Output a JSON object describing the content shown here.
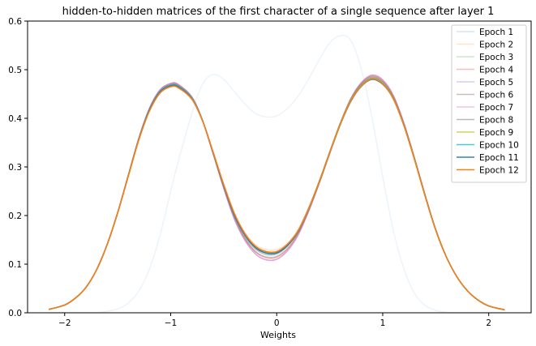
{
  "chart_data": {
    "type": "line",
    "title": "hidden-to-hidden matrices of the first character of a single sequence after layer 1",
    "xlabel": "Weights",
    "ylabel": "",
    "xlim": [
      -2.35,
      2.4
    ],
    "ylim": [
      0,
      0.6
    ],
    "xticks": [
      -2,
      -1,
      0,
      1,
      2
    ],
    "xtick_labels": [
      "−2",
      "−1",
      "0",
      "1",
      "2"
    ],
    "yticks": [
      0.0,
      0.1,
      0.2,
      0.3,
      0.4,
      0.5,
      0.6
    ],
    "ytick_labels": [
      "0.0",
      "0.1",
      "0.2",
      "0.3",
      "0.4",
      "0.5",
      "0.6"
    ],
    "grid": false,
    "legend_position": "top-right",
    "x": [
      -2.15,
      -2.0,
      -1.9,
      -1.8,
      -1.7,
      -1.6,
      -1.5,
      -1.4,
      -1.3,
      -1.2,
      -1.1,
      -1.0,
      -0.93,
      -0.8,
      -0.7,
      -0.6,
      -0.5,
      -0.4,
      -0.3,
      -0.2,
      -0.1,
      0.0,
      0.1,
      0.2,
      0.3,
      0.4,
      0.5,
      0.6,
      0.7,
      0.8,
      0.9,
      1.0,
      1.1,
      1.2,
      1.3,
      1.4,
      1.5,
      1.6,
      1.7,
      1.8,
      1.9,
      2.0,
      2.15
    ],
    "series": [
      {
        "name": "Epoch 1",
        "color": "#1f77b4",
        "opacity": 0.08,
        "values": [
          0.0,
          0.0,
          0.0,
          0.0,
          0.0,
          0.003,
          0.008,
          0.02,
          0.045,
          0.09,
          0.16,
          0.25,
          0.31,
          0.41,
          0.47,
          0.49,
          0.48,
          0.455,
          0.43,
          0.41,
          0.403,
          0.405,
          0.42,
          0.445,
          0.48,
          0.52,
          0.555,
          0.57,
          0.56,
          0.5,
          0.4,
          0.28,
          0.17,
          0.09,
          0.04,
          0.015,
          0.005,
          0.001,
          0.0,
          0.0,
          0.0,
          0.0,
          0.0
        ]
      },
      {
        "name": "Epoch 2",
        "color": "#ff7f0e",
        "opacity": 0.22,
        "values": [
          0.007,
          0.016,
          0.03,
          0.052,
          0.088,
          0.14,
          0.205,
          0.28,
          0.355,
          0.415,
          0.452,
          0.466,
          0.463,
          0.44,
          0.395,
          0.33,
          0.265,
          0.205,
          0.165,
          0.14,
          0.13,
          0.13,
          0.143,
          0.17,
          0.215,
          0.27,
          0.33,
          0.39,
          0.438,
          0.468,
          0.48,
          0.47,
          0.44,
          0.385,
          0.315,
          0.24,
          0.17,
          0.115,
          0.074,
          0.045,
          0.026,
          0.014,
          0.006
        ]
      },
      {
        "name": "Epoch 3",
        "color": "#2ca02c",
        "opacity": 0.25,
        "values": [
          0.007,
          0.016,
          0.03,
          0.052,
          0.088,
          0.14,
          0.205,
          0.28,
          0.355,
          0.415,
          0.452,
          0.466,
          0.463,
          0.44,
          0.394,
          0.329,
          0.263,
          0.203,
          0.162,
          0.137,
          0.126,
          0.126,
          0.14,
          0.167,
          0.212,
          0.267,
          0.328,
          0.388,
          0.437,
          0.468,
          0.481,
          0.472,
          0.442,
          0.386,
          0.316,
          0.241,
          0.171,
          0.115,
          0.074,
          0.045,
          0.026,
          0.014,
          0.006
        ]
      },
      {
        "name": "Epoch 4",
        "color": "#d62728",
        "opacity": 0.3,
        "values": [
          0.007,
          0.016,
          0.03,
          0.052,
          0.088,
          0.14,
          0.206,
          0.282,
          0.358,
          0.419,
          0.457,
          0.47,
          0.468,
          0.443,
          0.396,
          0.328,
          0.258,
          0.196,
          0.152,
          0.125,
          0.113,
          0.114,
          0.13,
          0.161,
          0.209,
          0.266,
          0.328,
          0.389,
          0.44,
          0.472,
          0.487,
          0.477,
          0.446,
          0.389,
          0.318,
          0.242,
          0.171,
          0.115,
          0.074,
          0.045,
          0.026,
          0.014,
          0.006
        ]
      },
      {
        "name": "Epoch 5",
        "color": "#9467bd",
        "opacity": 0.35,
        "values": [
          0.007,
          0.016,
          0.03,
          0.052,
          0.088,
          0.14,
          0.206,
          0.283,
          0.36,
          0.421,
          0.459,
          0.472,
          0.47,
          0.444,
          0.396,
          0.327,
          0.256,
          0.193,
          0.149,
          0.121,
          0.109,
          0.11,
          0.127,
          0.159,
          0.208,
          0.266,
          0.329,
          0.39,
          0.441,
          0.474,
          0.489,
          0.479,
          0.447,
          0.39,
          0.318,
          0.242,
          0.171,
          0.115,
          0.074,
          0.045,
          0.026,
          0.014,
          0.006
        ]
      },
      {
        "name": "Epoch 6",
        "color": "#8c564b",
        "opacity": 0.4,
        "values": [
          0.007,
          0.016,
          0.03,
          0.052,
          0.088,
          0.14,
          0.206,
          0.282,
          0.359,
          0.42,
          0.458,
          0.471,
          0.469,
          0.443,
          0.396,
          0.328,
          0.258,
          0.196,
          0.153,
          0.126,
          0.115,
          0.116,
          0.132,
          0.163,
          0.211,
          0.268,
          0.33,
          0.39,
          0.44,
          0.472,
          0.486,
          0.476,
          0.445,
          0.389,
          0.318,
          0.242,
          0.171,
          0.115,
          0.074,
          0.045,
          0.026,
          0.014,
          0.006
        ]
      },
      {
        "name": "Epoch 7",
        "color": "#e377c2",
        "opacity": 0.45,
        "values": [
          0.007,
          0.016,
          0.03,
          0.052,
          0.088,
          0.14,
          0.206,
          0.283,
          0.36,
          0.421,
          0.459,
          0.472,
          0.47,
          0.444,
          0.396,
          0.327,
          0.256,
          0.193,
          0.149,
          0.121,
          0.109,
          0.11,
          0.127,
          0.159,
          0.208,
          0.266,
          0.329,
          0.39,
          0.441,
          0.474,
          0.489,
          0.479,
          0.447,
          0.39,
          0.318,
          0.242,
          0.171,
          0.115,
          0.074,
          0.045,
          0.026,
          0.014,
          0.006
        ]
      },
      {
        "name": "Epoch 8",
        "color": "#7f7f7f",
        "opacity": 0.55,
        "values": [
          0.007,
          0.016,
          0.03,
          0.052,
          0.088,
          0.14,
          0.206,
          0.282,
          0.358,
          0.419,
          0.456,
          0.469,
          0.467,
          0.442,
          0.396,
          0.329,
          0.26,
          0.199,
          0.157,
          0.131,
          0.12,
          0.121,
          0.137,
          0.167,
          0.214,
          0.27,
          0.331,
          0.39,
          0.439,
          0.47,
          0.484,
          0.474,
          0.443,
          0.387,
          0.317,
          0.241,
          0.171,
          0.115,
          0.074,
          0.045,
          0.026,
          0.014,
          0.006
        ]
      },
      {
        "name": "Epoch 9",
        "color": "#bcbd22",
        "opacity": 0.7,
        "values": [
          0.007,
          0.016,
          0.03,
          0.052,
          0.088,
          0.14,
          0.206,
          0.282,
          0.358,
          0.418,
          0.455,
          0.468,
          0.466,
          0.441,
          0.396,
          0.33,
          0.262,
          0.202,
          0.161,
          0.135,
          0.124,
          0.125,
          0.14,
          0.169,
          0.215,
          0.27,
          0.331,
          0.39,
          0.438,
          0.469,
          0.483,
          0.473,
          0.442,
          0.386,
          0.316,
          0.241,
          0.171,
          0.115,
          0.074,
          0.045,
          0.026,
          0.014,
          0.006
        ]
      },
      {
        "name": "Epoch 10",
        "color": "#17becf",
        "opacity": 0.8,
        "values": [
          0.007,
          0.016,
          0.03,
          0.052,
          0.088,
          0.14,
          0.206,
          0.282,
          0.358,
          0.418,
          0.455,
          0.468,
          0.466,
          0.441,
          0.396,
          0.33,
          0.262,
          0.202,
          0.16,
          0.134,
          0.123,
          0.124,
          0.139,
          0.168,
          0.214,
          0.269,
          0.33,
          0.389,
          0.437,
          0.468,
          0.482,
          0.472,
          0.441,
          0.386,
          0.316,
          0.241,
          0.171,
          0.115,
          0.074,
          0.045,
          0.026,
          0.014,
          0.006
        ]
      },
      {
        "name": "Epoch 11",
        "color": "#1f77b4",
        "opacity": 0.9,
        "values": [
          0.007,
          0.016,
          0.03,
          0.052,
          0.088,
          0.14,
          0.206,
          0.282,
          0.357,
          0.417,
          0.454,
          0.467,
          0.465,
          0.44,
          0.395,
          0.33,
          0.262,
          0.202,
          0.16,
          0.134,
          0.123,
          0.123,
          0.138,
          0.166,
          0.212,
          0.267,
          0.328,
          0.387,
          0.435,
          0.466,
          0.48,
          0.47,
          0.44,
          0.385,
          0.315,
          0.24,
          0.17,
          0.115,
          0.074,
          0.045,
          0.026,
          0.014,
          0.006
        ]
      },
      {
        "name": "Epoch 12",
        "color": "#ff7f0e",
        "opacity": 1.0,
        "values": [
          0.007,
          0.016,
          0.03,
          0.052,
          0.088,
          0.14,
          0.206,
          0.281,
          0.356,
          0.415,
          0.452,
          0.465,
          0.463,
          0.439,
          0.395,
          0.331,
          0.264,
          0.205,
          0.163,
          0.137,
          0.126,
          0.126,
          0.141,
          0.168,
          0.213,
          0.268,
          0.329,
          0.388,
          0.436,
          0.467,
          0.481,
          0.471,
          0.44,
          0.385,
          0.315,
          0.24,
          0.17,
          0.115,
          0.074,
          0.045,
          0.026,
          0.014,
          0.006
        ]
      }
    ]
  }
}
